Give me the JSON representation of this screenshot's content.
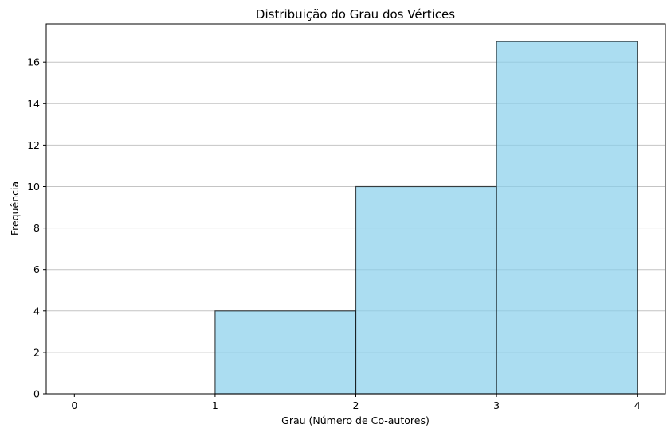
{
  "chart_data": {
    "type": "bar",
    "title": "Distribuição do Grau dos Vértices",
    "xlabel": "Grau (Número de Co-autores)",
    "ylabel": "Frequência",
    "bins": [
      {
        "start": 0,
        "end": 1,
        "value": 0
      },
      {
        "start": 1,
        "end": 2,
        "value": 4
      },
      {
        "start": 2,
        "end": 3,
        "value": 10
      },
      {
        "start": 3,
        "end": 4,
        "value": 17
      }
    ],
    "xlim": [
      -0.2,
      4.2
    ],
    "ylim": [
      0,
      17.85
    ],
    "xticks": [
      0,
      1,
      2,
      3,
      4
    ],
    "yticks": [
      0,
      2,
      4,
      6,
      8,
      10,
      12,
      14,
      16
    ],
    "grid": "y-axis only",
    "bar_color": "#87CEEB",
    "edge_color": "#000000"
  }
}
